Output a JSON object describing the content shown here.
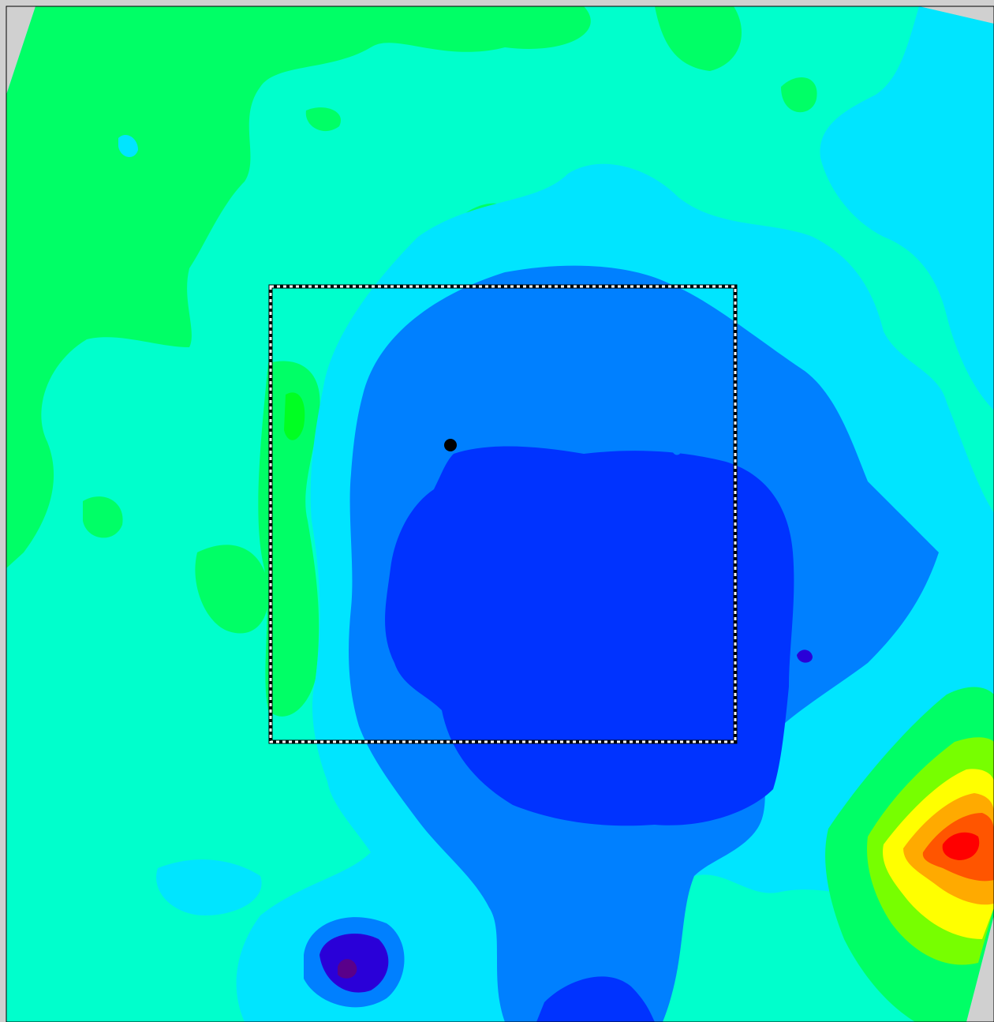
{
  "map": {
    "palette": {
      "page_gray": "#d0d0d0",
      "level_green": "#00ff66",
      "level_bright_green": "#00ff22",
      "level_aqua": "#00ffcc",
      "level_cyan": "#00e5ff",
      "level_sky": "#0080ff",
      "level_blue": "#0033ff",
      "level_indigo": "#2a00d8",
      "level_purple": "#5a008a",
      "level_lime": "#77ff00",
      "level_yellow": "#ffff00",
      "level_orange": "#ffaa00",
      "level_red_orange": "#ff5500",
      "level_red": "#ff0000"
    },
    "selection_box": {
      "style": "dashed black-and-white"
    },
    "marker": {
      "color": "#000000",
      "icon": "location-dot-icon"
    }
  }
}
